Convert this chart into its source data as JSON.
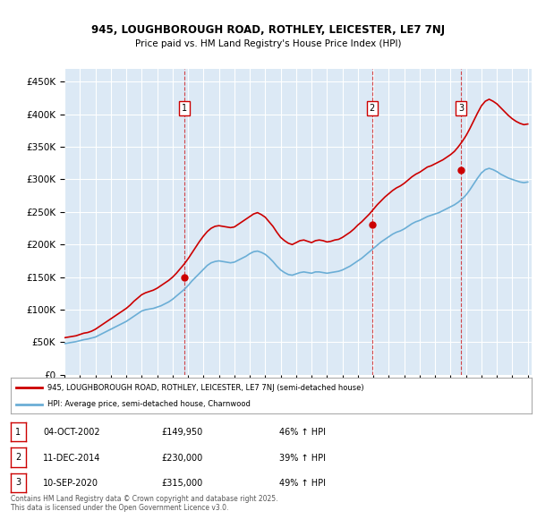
{
  "title_line1": "945, LOUGHBOROUGH ROAD, ROTHLEY, LEICESTER, LE7 7NJ",
  "title_line2": "Price paid vs. HM Land Registry's House Price Index (HPI)",
  "background_color": "#dce9f5",
  "plot_bg_color": "#dce9f5",
  "grid_color": "#ffffff",
  "ylim": [
    0,
    470000
  ],
  "yticks": [
    0,
    50000,
    100000,
    150000,
    200000,
    250000,
    300000,
    350000,
    400000,
    450000
  ],
  "ytick_labels": [
    "£0",
    "£50K",
    "£100K",
    "£150K",
    "£200K",
    "£250K",
    "£300K",
    "£350K",
    "£400K",
    "£450K"
  ],
  "hpi_color": "#6baed6",
  "price_color": "#cc0000",
  "sale_dates": [
    "2002-10-04",
    "2014-12-11",
    "2020-09-10"
  ],
  "sale_prices": [
    149950,
    230000,
    315000
  ],
  "sale_labels": [
    "1",
    "2",
    "3"
  ],
  "legend_line1": "945, LOUGHBOROUGH ROAD, ROTHLEY, LEICESTER, LE7 7NJ (semi-detached house)",
  "legend_line2": "HPI: Average price, semi-detached house, Charnwood",
  "table_entries": [
    [
      "1",
      "04-OCT-2002",
      "£149,950",
      "46% ↑ HPI"
    ],
    [
      "2",
      "11-DEC-2014",
      "£230,000",
      "39% ↑ HPI"
    ],
    [
      "3",
      "10-SEP-2020",
      "£315,000",
      "49% ↑ HPI"
    ]
  ],
  "footer_text": "Contains HM Land Registry data © Crown copyright and database right 2025.\nThis data is licensed under the Open Government Licence v3.0.",
  "hpi_data_x": [
    1995.0,
    1995.25,
    1995.5,
    1995.75,
    1996.0,
    1996.25,
    1996.5,
    1996.75,
    1997.0,
    1997.25,
    1997.5,
    1997.75,
    1998.0,
    1998.25,
    1998.5,
    1998.75,
    1999.0,
    1999.25,
    1999.5,
    1999.75,
    2000.0,
    2000.25,
    2000.5,
    2000.75,
    2001.0,
    2001.25,
    2001.5,
    2001.75,
    2002.0,
    2002.25,
    2002.5,
    2002.75,
    2003.0,
    2003.25,
    2003.5,
    2003.75,
    2004.0,
    2004.25,
    2004.5,
    2004.75,
    2005.0,
    2005.25,
    2005.5,
    2005.75,
    2006.0,
    2006.25,
    2006.5,
    2006.75,
    2007.0,
    2007.25,
    2007.5,
    2007.75,
    2008.0,
    2008.25,
    2008.5,
    2008.75,
    2009.0,
    2009.25,
    2009.5,
    2009.75,
    2010.0,
    2010.25,
    2010.5,
    2010.75,
    2011.0,
    2011.25,
    2011.5,
    2011.75,
    2012.0,
    2012.25,
    2012.5,
    2012.75,
    2013.0,
    2013.25,
    2013.5,
    2013.75,
    2014.0,
    2014.25,
    2014.5,
    2014.75,
    2015.0,
    2015.25,
    2015.5,
    2015.75,
    2016.0,
    2016.25,
    2016.5,
    2016.75,
    2017.0,
    2017.25,
    2017.5,
    2017.75,
    2018.0,
    2018.25,
    2018.5,
    2018.75,
    2019.0,
    2019.25,
    2019.5,
    2019.75,
    2020.0,
    2020.25,
    2020.5,
    2020.75,
    2021.0,
    2021.25,
    2021.5,
    2021.75,
    2022.0,
    2022.25,
    2022.5,
    2022.75,
    2023.0,
    2023.25,
    2023.5,
    2023.75,
    2024.0,
    2024.25,
    2024.5,
    2024.75,
    2025.0
  ],
  "hpi_data_y": [
    48000,
    49000,
    50000,
    51000,
    52500,
    54000,
    55000,
    56500,
    58000,
    61000,
    64000,
    67000,
    70000,
    73000,
    76000,
    79000,
    82000,
    86000,
    90000,
    94000,
    98000,
    100000,
    101000,
    102000,
    104000,
    106000,
    109000,
    112000,
    116000,
    121000,
    126000,
    131000,
    137000,
    144000,
    150000,
    156000,
    162000,
    168000,
    172000,
    174000,
    175000,
    174000,
    173000,
    172000,
    173000,
    176000,
    179000,
    182000,
    186000,
    189000,
    190000,
    188000,
    185000,
    180000,
    174000,
    167000,
    161000,
    157000,
    154000,
    153000,
    155000,
    157000,
    158000,
    157000,
    156000,
    158000,
    158000,
    157000,
    156000,
    157000,
    158000,
    159000,
    161000,
    164000,
    167000,
    171000,
    175000,
    179000,
    184000,
    189000,
    194000,
    199000,
    204000,
    208000,
    212000,
    216000,
    219000,
    221000,
    224000,
    228000,
    232000,
    235000,
    237000,
    240000,
    243000,
    245000,
    247000,
    249000,
    252000,
    255000,
    258000,
    261000,
    265000,
    270000,
    276000,
    284000,
    293000,
    302000,
    310000,
    315000,
    317000,
    315000,
    312000,
    308000,
    305000,
    302000,
    300000,
    298000,
    296000,
    295000,
    296000
  ],
  "price_data_x": [
    1995.0,
    1995.25,
    1995.5,
    1995.75,
    1996.0,
    1996.25,
    1996.5,
    1996.75,
    1997.0,
    1997.25,
    1997.5,
    1997.75,
    1998.0,
    1998.25,
    1998.5,
    1998.75,
    1999.0,
    1999.25,
    1999.5,
    1999.75,
    2000.0,
    2000.25,
    2000.5,
    2000.75,
    2001.0,
    2001.25,
    2001.5,
    2001.75,
    2002.0,
    2002.25,
    2002.5,
    2002.75,
    2003.0,
    2003.25,
    2003.5,
    2003.75,
    2004.0,
    2004.25,
    2004.5,
    2004.75,
    2005.0,
    2005.25,
    2005.5,
    2005.75,
    2006.0,
    2006.25,
    2006.5,
    2006.75,
    2007.0,
    2007.25,
    2007.5,
    2007.75,
    2008.0,
    2008.25,
    2008.5,
    2008.75,
    2009.0,
    2009.25,
    2009.5,
    2009.75,
    2010.0,
    2010.25,
    2010.5,
    2010.75,
    2011.0,
    2011.25,
    2011.5,
    2011.75,
    2012.0,
    2012.25,
    2012.5,
    2012.75,
    2013.0,
    2013.25,
    2013.5,
    2013.75,
    2014.0,
    2014.25,
    2014.5,
    2014.75,
    2015.0,
    2015.25,
    2015.5,
    2015.75,
    2016.0,
    2016.25,
    2016.5,
    2016.75,
    2017.0,
    2017.25,
    2017.5,
    2017.75,
    2018.0,
    2018.25,
    2018.5,
    2018.75,
    2019.0,
    2019.25,
    2019.5,
    2019.75,
    2020.0,
    2020.25,
    2020.5,
    2020.75,
    2021.0,
    2021.25,
    2021.5,
    2021.75,
    2022.0,
    2022.25,
    2022.5,
    2022.75,
    2023.0,
    2023.25,
    2023.5,
    2023.75,
    2024.0,
    2024.25,
    2024.5,
    2024.75,
    2025.0
  ],
  "price_data_y": [
    57000,
    58000,
    59000,
    60000,
    62000,
    64000,
    65000,
    67000,
    70000,
    74000,
    78000,
    82000,
    86000,
    90000,
    94000,
    98000,
    102000,
    107000,
    113000,
    118000,
    123000,
    126000,
    128000,
    130000,
    133000,
    137000,
    141000,
    145000,
    149950,
    156000,
    163000,
    170000,
    178000,
    187000,
    196000,
    205000,
    213000,
    220000,
    225000,
    228000,
    229000,
    228000,
    227000,
    226000,
    227000,
    231000,
    235000,
    239000,
    243000,
    247000,
    249000,
    246000,
    242000,
    235000,
    228000,
    219000,
    211000,
    206000,
    202000,
    200000,
    203000,
    206000,
    207000,
    205000,
    203000,
    206000,
    207000,
    206000,
    204000,
    205000,
    207000,
    208000,
    211000,
    215000,
    219000,
    224000,
    230000,
    235000,
    241000,
    247000,
    254000,
    261000,
    267000,
    273000,
    278000,
    283000,
    287000,
    290000,
    294000,
    299000,
    304000,
    308000,
    311000,
    315000,
    319000,
    321000,
    324000,
    327000,
    330000,
    334000,
    338000,
    343000,
    350000,
    358000,
    367000,
    378000,
    390000,
    402000,
    413000,
    420000,
    423000,
    420000,
    416000,
    410000,
    404000,
    398000,
    393000,
    389000,
    386000,
    384000,
    385000
  ],
  "xlim": [
    1995.0,
    2025.25
  ],
  "xticks": [
    1995,
    1996,
    1997,
    1998,
    1999,
    2000,
    2001,
    2002,
    2003,
    2004,
    2005,
    2006,
    2007,
    2008,
    2009,
    2010,
    2011,
    2012,
    2013,
    2014,
    2015,
    2016,
    2017,
    2018,
    2019,
    2020,
    2021,
    2022,
    2023,
    2024,
    2025
  ]
}
